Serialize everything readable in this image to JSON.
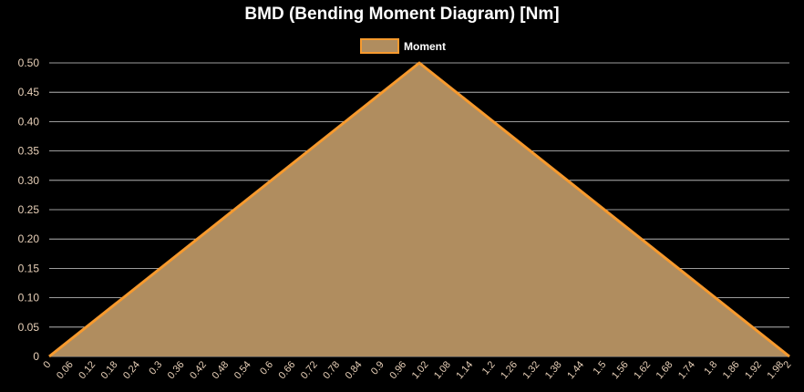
{
  "chart_data": {
    "type": "area",
    "title": "BMD (Bending Moment Diagram) [Nm]",
    "legend": {
      "position": "top-center"
    },
    "grid": true,
    "xlabel": "",
    "ylabel": "",
    "ylim": [
      0,
      0.5
    ],
    "yticks": [
      "0",
      "0.05",
      "0.10",
      "0.15",
      "0.20",
      "0.25",
      "0.30",
      "0.35",
      "0.40",
      "0.45",
      "0.50"
    ],
    "x": [
      "0",
      "0.06",
      "0.12",
      "0.18",
      "0.24",
      "0.3",
      "0.36",
      "0.42",
      "0.48",
      "0.54",
      "0.6",
      "0.66",
      "0.72",
      "0.78",
      "0.84",
      "0.9",
      "0.96",
      "1.02",
      "1.08",
      "1.14",
      "1.2",
      "1.26",
      "1.32",
      "1.38",
      "1.44",
      "1.5",
      "1.56",
      "1.62",
      "1.68",
      "1.74",
      "1.8",
      "1.86",
      "1.92",
      "1.98",
      "2"
    ],
    "series": [
      {
        "name": "Moment",
        "fill_color": "#b08d5f",
        "line_color": "#f79a2e",
        "points": [
          {
            "x": 0,
            "y": 0
          },
          {
            "x": 1,
            "y": 0.5
          },
          {
            "x": 2,
            "y": 0
          }
        ]
      }
    ]
  },
  "colors": {
    "background": "#000000",
    "tick_text": "#e8d0b8",
    "grid": "#cfcfcf",
    "title_text": "#ffffff"
  }
}
